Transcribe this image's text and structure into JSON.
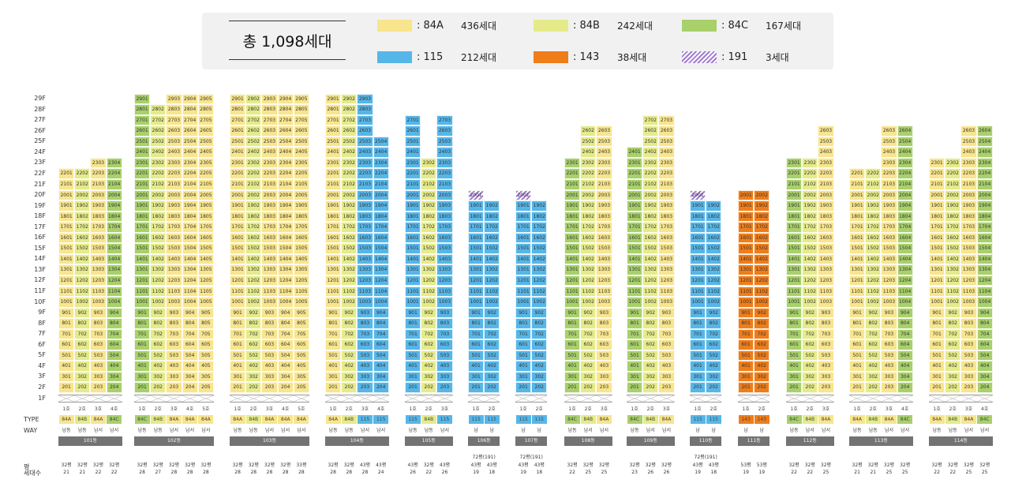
{
  "legend": {
    "total": "총 1,098세대",
    "items": [
      {
        "code": ": 84A",
        "count": "436세대",
        "type": "84A",
        "color": "#f8e58d"
      },
      {
        "code": ": 84B",
        "count": "242세대",
        "type": "84B",
        "color": "#e5eb8a"
      },
      {
        "code": ": 84C",
        "count": "167세대",
        "type": "84C",
        "color": "#a8d06b"
      },
      {
        "code": ": 115",
        "count": "212세대",
        "type": "115",
        "color": "#56b6e8"
      },
      {
        "code": ": 143",
        "count": "38세대",
        "type": "143",
        "color": "#ee7d1a"
      },
      {
        "code": ": 191",
        "count": "3세대",
        "type": "191",
        "color": "#a27cd0"
      }
    ]
  },
  "floor_labels": [
    "29F",
    "28F",
    "27F",
    "26F",
    "25F",
    "24F",
    "23F",
    "22F",
    "21F",
    "20F",
    "19F",
    "18F",
    "17F",
    "16F",
    "15F",
    "14F",
    "13F",
    "12F",
    "11F",
    "10F",
    "9F",
    "8F",
    "7F",
    "6F",
    "5F",
    "4F",
    "3F",
    "2F",
    "1F"
  ],
  "row_labels": {
    "type": "TYPE",
    "way": "WAY",
    "pyeong": "평",
    "households": "세대수"
  },
  "buildings": [
    {
      "name": "101동",
      "lines": [
        {
          "ho": "1호",
          "type": "84A",
          "way": "남동",
          "pyeong": "32평",
          "count": "21",
          "top": 22
        },
        {
          "ho": "2호",
          "type": "84B",
          "way": "남동",
          "pyeong": "32평",
          "count": "21",
          "top": 22
        },
        {
          "ho": "3호",
          "type": "84A",
          "way": "남서",
          "pyeong": "32평",
          "count": "22",
          "top": 23
        },
        {
          "ho": "4호",
          "type": "84C",
          "way": "남서",
          "pyeong": "32평",
          "count": "22",
          "top": 23
        }
      ]
    },
    {
      "name": "102동",
      "lines": [
        {
          "ho": "1호",
          "type": "84C",
          "way": "남동",
          "pyeong": "32평",
          "count": "28",
          "top": 29
        },
        {
          "ho": "2호",
          "type": "84B",
          "way": "남동",
          "pyeong": "32평",
          "count": "27",
          "top": 28
        },
        {
          "ho": "3호",
          "type": "84A",
          "way": "남서",
          "pyeong": "32평",
          "count": "28",
          "top": 29
        },
        {
          "ho": "4호",
          "type": "84A",
          "way": "남서",
          "pyeong": "32평",
          "count": "28",
          "top": 29
        },
        {
          "ho": "5호",
          "type": "84A",
          "way": "남서",
          "pyeong": "32평",
          "count": "28",
          "top": 29
        }
      ]
    },
    {
      "name": "103동",
      "lines": [
        {
          "ho": "1호",
          "type": "84A",
          "way": "남동",
          "pyeong": "32평",
          "count": "28",
          "top": 29
        },
        {
          "ho": "2호",
          "type": "84B",
          "way": "남동",
          "pyeong": "32평",
          "count": "28",
          "top": 29
        },
        {
          "ho": "3호",
          "type": "84A",
          "way": "남서",
          "pyeong": "32평",
          "count": "28",
          "top": 29
        },
        {
          "ho": "4호",
          "type": "84A",
          "way": "남서",
          "pyeong": "32평",
          "count": "28",
          "top": 29
        },
        {
          "ho": "5호",
          "type": "84A",
          "way": "남서",
          "pyeong": "33평",
          "count": "28",
          "top": 29
        }
      ]
    },
    {
      "name": "104동",
      "lines": [
        {
          "ho": "1호",
          "type": "84A",
          "way": "남동",
          "pyeong": "32평",
          "count": "28",
          "top": 29
        },
        {
          "ho": "2호",
          "type": "84B",
          "way": "남동",
          "pyeong": "32평",
          "count": "28",
          "top": 29
        },
        {
          "ho": "3호",
          "type": "115",
          "way": "남서",
          "pyeong": "43평",
          "count": "28",
          "top": 29
        },
        {
          "ho": "4호",
          "type": "115",
          "way": "남서",
          "pyeong": "43평",
          "count": "24",
          "top": 25
        }
      ]
    },
    {
      "name": "105동",
      "lines": [
        {
          "ho": "1호",
          "type": "115",
          "way": "남동",
          "pyeong": "43평",
          "count": "26",
          "top": 27
        },
        {
          "ho": "2호",
          "type": "84B",
          "way": "남동",
          "pyeong": "32평",
          "count": "22",
          "top": 23
        },
        {
          "ho": "3호",
          "type": "115",
          "way": "남서",
          "pyeong": "43평",
          "count": "26",
          "top": 27
        }
      ]
    },
    {
      "name": "106동",
      "stat_header": "72평(191)",
      "lines": [
        {
          "ho": "1호",
          "type": "115",
          "way": "남",
          "pyeong": "43평",
          "count": "19",
          "top": 20,
          "top_type": "191"
        },
        {
          "ho": "2호",
          "type": "115",
          "way": "남",
          "pyeong": "43평",
          "count": "18",
          "top": 19
        }
      ]
    },
    {
      "name": "107동",
      "stat_header": "72평(191)",
      "lines": [
        {
          "ho": "1호",
          "type": "115",
          "way": "남",
          "pyeong": "43평",
          "count": "19",
          "top": 20,
          "top_type": "191"
        },
        {
          "ho": "2호",
          "type": "115",
          "way": "남",
          "pyeong": "43평",
          "count": "18",
          "top": 19
        }
      ]
    },
    {
      "name": "108동",
      "lines": [
        {
          "ho": "1호",
          "type": "84C",
          "way": "남동",
          "pyeong": "32평",
          "count": "22",
          "top": 23
        },
        {
          "ho": "2호",
          "type": "84B",
          "way": "남서",
          "pyeong": "32평",
          "count": "25",
          "top": 26
        },
        {
          "ho": "3호",
          "type": "84A",
          "way": "남서",
          "pyeong": "32평",
          "count": "25",
          "top": 26
        }
      ]
    },
    {
      "name": "109동",
      "lines": [
        {
          "ho": "1호",
          "type": "84C",
          "way": "남동",
          "pyeong": "32평",
          "count": "23",
          "top": 24
        },
        {
          "ho": "2호",
          "type": "84B",
          "way": "남서",
          "pyeong": "32평",
          "count": "26",
          "top": 27
        },
        {
          "ho": "3호",
          "type": "84A",
          "way": "남서",
          "pyeong": "32평",
          "count": "26",
          "top": 27
        }
      ]
    },
    {
      "name": "110동",
      "stat_header": "72평(191)",
      "lines": [
        {
          "ho": "1호",
          "type": "115",
          "way": "남",
          "pyeong": "43평",
          "count": "19",
          "top": 20,
          "top_type": "191"
        },
        {
          "ho": "2호",
          "type": "115",
          "way": "남",
          "pyeong": "43평",
          "count": "18",
          "top": 19
        }
      ]
    },
    {
      "name": "111동",
      "lines": [
        {
          "ho": "1호",
          "type": "143",
          "way": "남",
          "pyeong": "53평",
          "count": "19",
          "top": 20
        },
        {
          "ho": "2호",
          "type": "143",
          "way": "남",
          "pyeong": "53평",
          "count": "19",
          "top": 20
        }
      ]
    },
    {
      "name": "112동",
      "lines": [
        {
          "ho": "1호",
          "type": "84C",
          "way": "남동",
          "pyeong": "32평",
          "count": "22",
          "top": 23
        },
        {
          "ho": "2호",
          "type": "84B",
          "way": "남서",
          "pyeong": "32평",
          "count": "22",
          "top": 23
        },
        {
          "ho": "3호",
          "type": "84A",
          "way": "남서",
          "pyeong": "32평",
          "count": "25",
          "top": 26
        }
      ]
    },
    {
      "name": "113동",
      "lines": [
        {
          "ho": "1호",
          "type": "84A",
          "way": "남동",
          "pyeong": "32평",
          "count": "21",
          "top": 22
        },
        {
          "ho": "2호",
          "type": "84B",
          "way": "남동",
          "pyeong": "32평",
          "count": "21",
          "top": 22
        },
        {
          "ho": "3호",
          "type": "84A",
          "way": "남서",
          "pyeong": "32평",
          "count": "25",
          "top": 26
        },
        {
          "ho": "4호",
          "type": "84C",
          "way": "남서",
          "pyeong": "32평",
          "count": "25",
          "top": 26
        }
      ]
    },
    {
      "name": "114동",
      "lines": [
        {
          "ho": "1호",
          "type": "84A",
          "way": "남동",
          "pyeong": "32평",
          "count": "22",
          "top": 23
        },
        {
          "ho": "2호",
          "type": "84B",
          "way": "남동",
          "pyeong": "32평",
          "count": "22",
          "top": 23
        },
        {
          "ho": "3호",
          "type": "84A",
          "way": "남서",
          "pyeong": "32평",
          "count": "25",
          "top": 26
        },
        {
          "ho": "4호",
          "type": "84C",
          "way": "남서",
          "pyeong": "32평",
          "count": "25",
          "top": 26
        }
      ]
    }
  ]
}
